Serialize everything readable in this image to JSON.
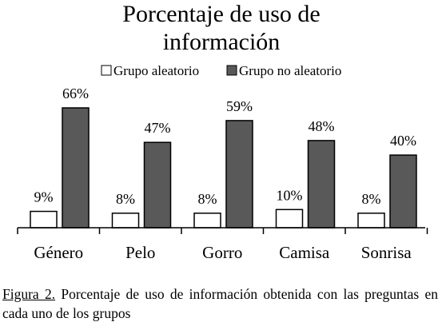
{
  "chart_data": {
    "type": "bar",
    "title_lines": [
      "Porcentaje de uso de",
      "información"
    ],
    "categories": [
      "Género",
      "Pelo",
      "Gorro",
      "Camisa",
      "Sonrisa"
    ],
    "series": [
      {
        "name": "Grupo aleatorio",
        "values": [
          9,
          8,
          8,
          10,
          8
        ],
        "labels": [
          "9%",
          "8%",
          "8%",
          "10%",
          "8%"
        ],
        "color": "#ffffff"
      },
      {
        "name": "Grupo no aleatorio",
        "values": [
          66,
          47,
          59,
          48,
          40
        ],
        "labels": [
          "66%",
          "47%",
          "59%",
          "48%",
          "40%"
        ],
        "color": "#595959"
      }
    ],
    "ylim": [
      0,
      66
    ],
    "grid": false,
    "legend": "top"
  },
  "caption": {
    "label": "Figura 2.",
    "text": " Porcentaje de uso de información obtenida con las preguntas en cada uno de los grupos"
  }
}
